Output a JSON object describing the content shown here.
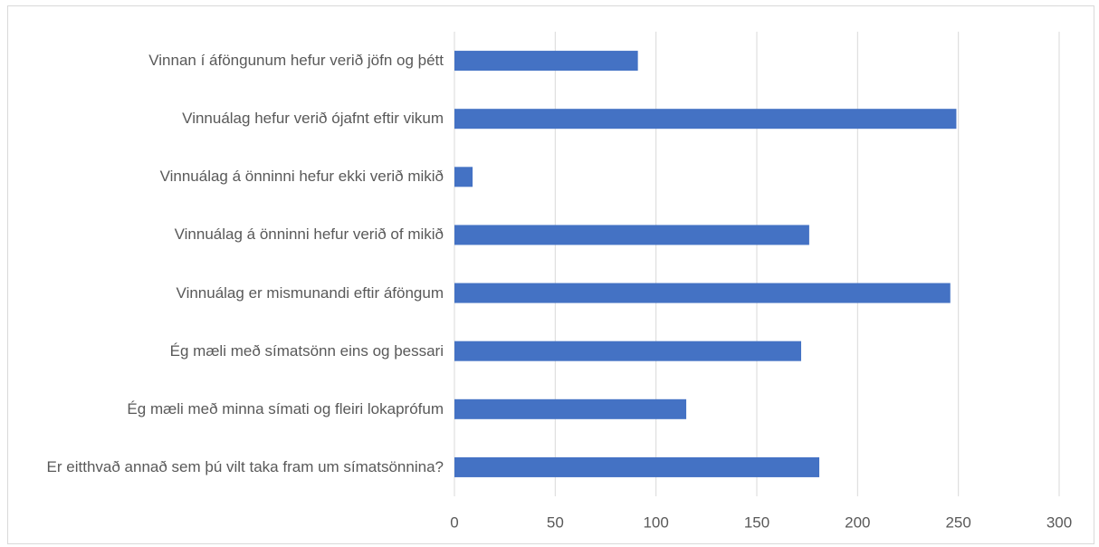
{
  "chart_data": {
    "type": "bar",
    "orientation": "horizontal",
    "categories": [
      "Vinnan í áföngunum hefur verið jöfn og þétt",
      "Vinnuálag hefur verið ójafnt eftir vikum",
      "Vinnuálag á önninni hefur ekki verið mikið",
      "Vinnuálag á önninni hefur verið of mikið",
      "Vinnuálag er mismunandi eftir áföngum",
      "Ég mæli með símatsönn eins og þessari",
      "Ég mæli með minna símati og fleiri lokaprófum",
      "Er eitthvað annað sem þú vilt taka fram um símatsönnina?"
    ],
    "values": [
      91,
      249,
      9,
      176,
      246,
      172,
      115,
      181
    ],
    "color": "#4472c4",
    "xlim": [
      0,
      300
    ],
    "xticks": [
      0,
      50,
      100,
      150,
      200,
      250,
      300
    ],
    "grid": true
  }
}
